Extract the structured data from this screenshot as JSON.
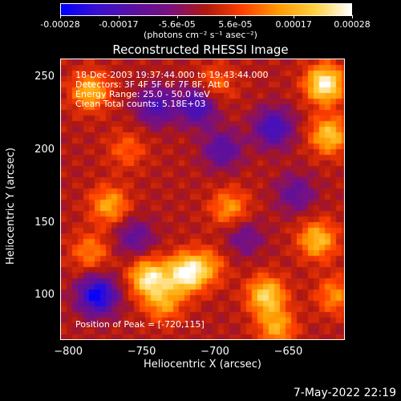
{
  "colorbar": {
    "ticks": [
      "-0.00028",
      "-0.00017",
      "-5.6e-05",
      "5.6e-05",
      "0.00017",
      "0.00028"
    ],
    "units": "(photons cm⁻² s⁻¹ asec⁻²)",
    "colors": [
      "#0000ff",
      "#3a10d0",
      "#5a10a0",
      "#7a1080",
      "#b01810",
      "#ff4000",
      "#ff9a00",
      "#ffd040",
      "#ffffff"
    ]
  },
  "chart_data": {
    "type": "heatmap",
    "title": "Reconstructed RHESSI Image",
    "xlabel": "Heliocentric X (arcsec)",
    "ylabel": "Heliocentric Y (arcsec)",
    "xlim": [
      -805,
      -612
    ],
    "ylim": [
      70,
      262
    ],
    "x_ticks": [
      "−800",
      "−750",
      "−700",
      "−650"
    ],
    "x_tick_values": [
      -800,
      -750,
      -700,
      -650
    ],
    "y_ticks": [
      "100",
      "150",
      "200",
      "250"
    ],
    "y_tick_values": [
      100,
      150,
      200,
      250
    ],
    "color_range": [
      -0.00028,
      0.00028
    ],
    "info_lines": [
      "18-Dec-2003 19:37:44.000 to 19:43:44.000",
      "Detectors: 3F 4F 5F 6F 7F 8F, Att 0",
      "Energy Range: 25.0 - 50.0 keV",
      "Clean     Total counts: 5.18E+03"
    ],
    "peak_label": "Position of Peak = [-720,115]",
    "bright_sources": [
      {
        "x": -625,
        "y": 245,
        "value": 0.00028
      },
      {
        "x": -622,
        "y": 210,
        "value": 0.0002
      },
      {
        "x": -785,
        "y": 240,
        "value": 0.00018
      },
      {
        "x": -772,
        "y": 162,
        "value": 0.00016
      },
      {
        "x": -785,
        "y": 130,
        "value": 0.00012
      },
      {
        "x": -745,
        "y": 112,
        "value": 0.00025
      },
      {
        "x": -720,
        "y": 115,
        "value": 0.00028
      },
      {
        "x": -735,
        "y": 95,
        "value": 0.00015
      },
      {
        "x": -665,
        "y": 100,
        "value": 0.00022
      },
      {
        "x": -658,
        "y": 78,
        "value": 0.00016
      },
      {
        "x": -690,
        "y": 160,
        "value": 0.00014
      },
      {
        "x": -705,
        "y": 120,
        "value": 0.00012
      },
      {
        "x": -630,
        "y": 138,
        "value": 0.00019
      },
      {
        "x": -618,
        "y": 100,
        "value": 0.00013
      },
      {
        "x": -700,
        "y": 245,
        "value": 0.0001
      },
      {
        "x": -760,
        "y": 200,
        "value": 9e-05
      }
    ],
    "dark_sources": [
      {
        "x": -780,
        "y": 100,
        "value": -0.00028
      },
      {
        "x": -712,
        "y": 230,
        "value": -0.0002
      },
      {
        "x": -660,
        "y": 215,
        "value": -0.0002
      },
      {
        "x": -695,
        "y": 200,
        "value": -0.00015
      },
      {
        "x": -755,
        "y": 140,
        "value": -0.00012
      },
      {
        "x": -645,
        "y": 170,
        "value": -0.00012
      },
      {
        "x": -740,
        "y": 230,
        "value": -0.00017
      },
      {
        "x": -680,
        "y": 140,
        "value": -0.0001
      }
    ]
  },
  "footer": {
    "timestamp": "7-May-2022 22:19"
  }
}
